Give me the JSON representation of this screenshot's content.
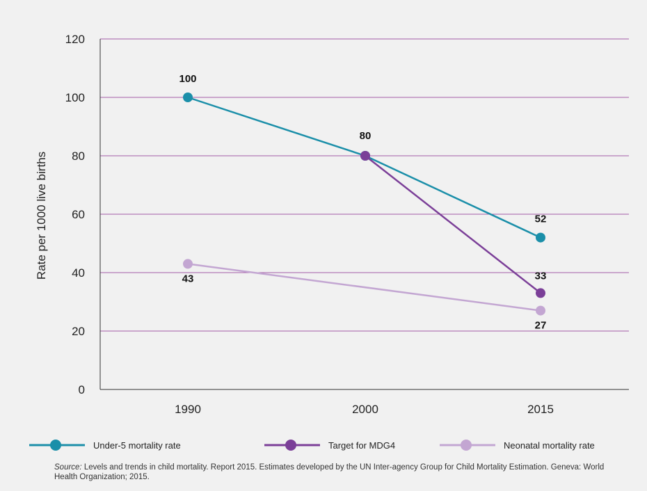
{
  "chart_data": {
    "type": "line",
    "categories": [
      "1990",
      "2000",
      "2015"
    ],
    "ylabel": "Rate per 1000 live births",
    "ylim": [
      0,
      120
    ],
    "yticks": [
      0,
      20,
      40,
      60,
      80,
      100,
      120
    ],
    "grid": "horizontal",
    "legend_position": "bottom",
    "series": [
      {
        "name": "Under-5 mortality rate",
        "color": "#1b8fa9",
        "points": [
          {
            "x": "1990",
            "y": 100
          },
          {
            "x": "2000",
            "y": 80
          },
          {
            "x": "2015",
            "y": 52
          }
        ],
        "labels": [
          "100",
          "80",
          "52"
        ]
      },
      {
        "name": "Target for MDG4",
        "color": "#7b3f98",
        "points": [
          {
            "x": "2000",
            "y": 80
          },
          {
            "x": "2015",
            "y": 33
          }
        ],
        "labels": [
          "",
          "33"
        ]
      },
      {
        "name": "Neonatal mortality rate",
        "color": "#c3a6d2",
        "points": [
          {
            "x": "1990",
            "y": 43
          },
          {
            "x": "2015",
            "y": 27
          }
        ],
        "labels": [
          "43",
          "27"
        ]
      }
    ],
    "colors": {
      "grid": "#a45aa7",
      "axis": "#333333",
      "background": "#f1f1f1"
    }
  },
  "source": {
    "label": "Source:",
    "text": "Levels and trends in child mortality. Report 2015. Estimates developed by the UN Inter-agency Group for Child Mortality Estimation. Geneva: World Health Organization; 2015."
  }
}
